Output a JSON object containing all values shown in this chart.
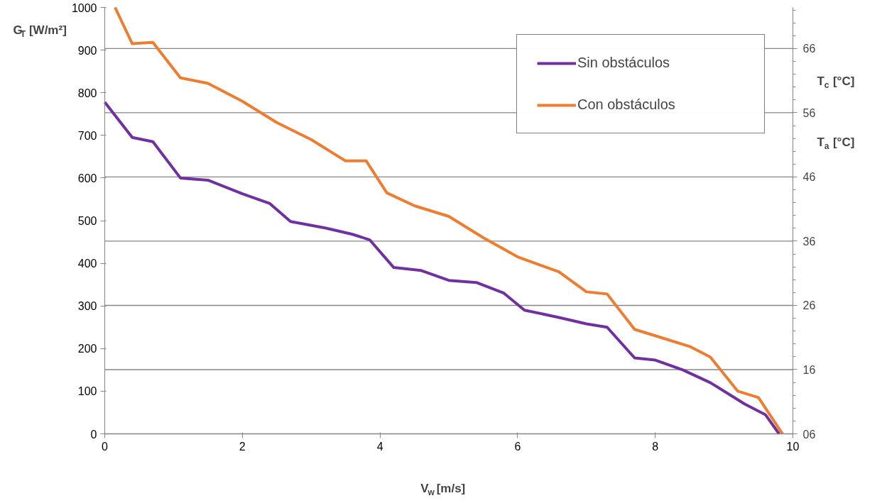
{
  "chart_data": {
    "type": "line",
    "xlabel": "V$_{w}$ [m/s]",
    "ylabel": "G$_{T}$ [W/m²]",
    "y2label": "T$_{c}$ [°C]",
    "annotations": [
      "T$_{a}$ [°C]"
    ],
    "xlim": [
      0,
      10
    ],
    "xticks": [
      0,
      2,
      4,
      6,
      8,
      10
    ],
    "ylim": [
      0,
      1000
    ],
    "yticks": [
      0,
      100,
      200,
      300,
      400,
      500,
      600,
      700,
      800,
      900,
      1000
    ],
    "y2lim": [
      6,
      72.4
    ],
    "y2ticks": [
      {
        "value": 6,
        "label": "06"
      },
      16,
      26,
      36,
      46,
      56,
      66
    ],
    "grid": "y2",
    "legend": "top right",
    "marker": "none",
    "line_style": "solid",
    "series": [
      {
        "name": "Sin obstáculos",
        "color": "#7030a0",
        "x": [
          0,
          0.4,
          0.7,
          1.1,
          1.5,
          2,
          2.4,
          2.7,
          3.2,
          3.6,
          3.85,
          4.2,
          4.6,
          5,
          5.4,
          5.8,
          6.1,
          6.6,
          7,
          7.3,
          7.7,
          8,
          8.4,
          8.8,
          9.3,
          9.6,
          9.8
        ],
        "values": [
          778,
          695,
          685,
          600,
          595,
          563,
          540,
          498,
          483,
          468,
          455,
          390,
          383,
          360,
          355,
          330,
          290,
          273,
          258,
          250,
          178,
          173,
          150,
          120,
          70,
          45,
          0
        ]
      },
      {
        "name": "Con obstáculos",
        "color": "#ed7d31",
        "x": [
          0.15,
          0.4,
          0.7,
          1.1,
          1.5,
          2,
          2.5,
          3,
          3.5,
          3.8,
          4.1,
          4.5,
          5,
          5.5,
          6,
          6.6,
          7,
          7.3,
          7.7,
          8,
          8.5,
          8.8,
          9.2,
          9.5,
          9.85
        ],
        "values": [
          1000,
          915,
          918,
          835,
          822,
          780,
          730,
          690,
          640,
          640,
          565,
          535,
          510,
          460,
          415,
          380,
          333,
          328,
          245,
          230,
          205,
          180,
          100,
          85,
          0
        ]
      }
    ]
  }
}
